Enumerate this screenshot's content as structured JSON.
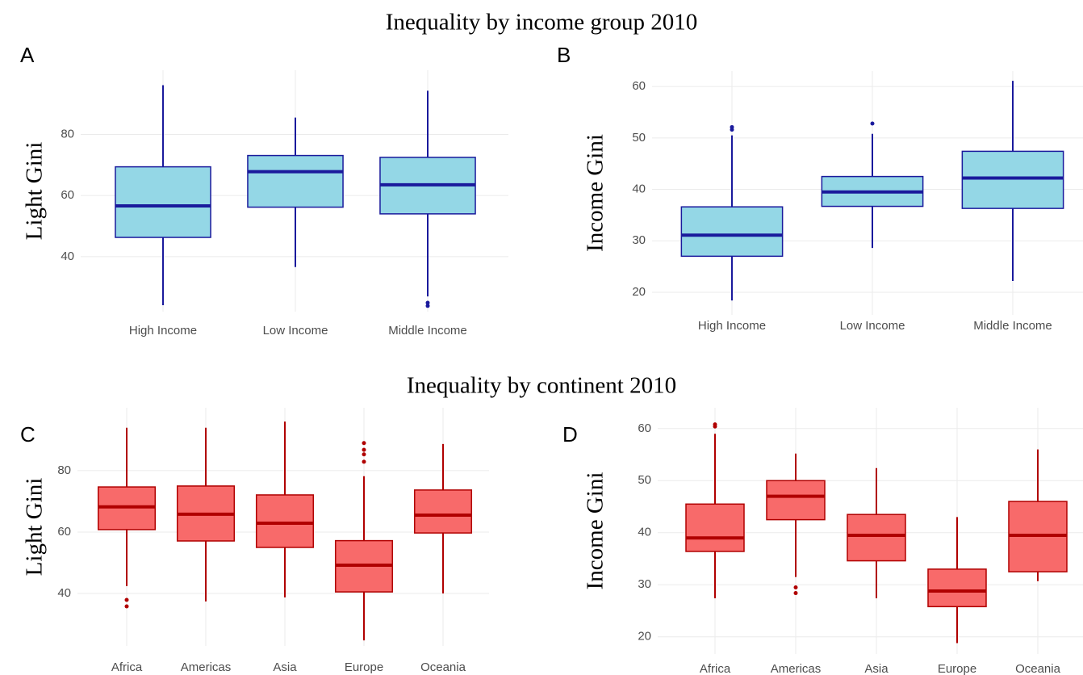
{
  "chart_data": [
    {
      "type": "box",
      "title": "Inequality by income group 2010",
      "panel": "A",
      "ylabel": "Light Gini",
      "categories": [
        "High Income",
        "Low Income",
        "Middle Income"
      ],
      "boxes": [
        {
          "min": 24.1,
          "q1": 46.3,
          "median": 56.6,
          "q3": 69.4,
          "max": 96.1,
          "outliers": []
        },
        {
          "min": 36.6,
          "q1": 56.2,
          "median": 67.8,
          "q3": 73.1,
          "max": 85.5,
          "outliers": []
        },
        {
          "min": 27.0,
          "q1": 54.0,
          "median": 63.5,
          "q3": 72.5,
          "max": 94.3,
          "outliers": [
            24.9,
            23.9
          ]
        }
      ],
      "color": "#94d7e6",
      "edge_color": "#1a1a9c",
      "ylim": [
        22,
        101
      ],
      "yticks": [
        40,
        60,
        80
      ],
      "grid": true
    },
    {
      "type": "box",
      "panel": "B",
      "ylabel": "Income Gini",
      "categories": [
        "High Income",
        "Low Income",
        "Middle Income"
      ],
      "boxes": [
        {
          "min": 18.4,
          "q1": 27.0,
          "median": 31.1,
          "q3": 36.6,
          "max": 50.5,
          "outliers": [
            52.1,
            51.6
          ]
        },
        {
          "min": 28.6,
          "q1": 36.7,
          "median": 39.5,
          "q3": 42.5,
          "max": 50.8,
          "outliers": [
            52.8
          ]
        },
        {
          "min": 22.2,
          "q1": 36.3,
          "median": 42.2,
          "q3": 47.4,
          "max": 61.1,
          "outliers": []
        }
      ],
      "color": "#94d7e6",
      "edge_color": "#1a1a9c",
      "ylim": [
        15.6,
        63
      ],
      "yticks": [
        20,
        30,
        40,
        50,
        60
      ],
      "grid": true
    },
    {
      "type": "box",
      "title": "Inequality by continent 2010",
      "panel": "C",
      "ylabel": "Light Gini",
      "categories": [
        "Africa",
        "Americas",
        "Asia",
        "Europe",
        "Oceania"
      ],
      "boxes": [
        {
          "min": 42.4,
          "q1": 60.8,
          "median": 68.2,
          "q3": 74.7,
          "max": 94.0,
          "outliers": [
            37.9,
            35.8
          ]
        },
        {
          "min": 37.4,
          "q1": 57.1,
          "median": 65.8,
          "q3": 75.0,
          "max": 94.0,
          "outliers": []
        },
        {
          "min": 38.7,
          "q1": 55.0,
          "median": 62.9,
          "q3": 72.1,
          "max": 96.0,
          "outliers": []
        },
        {
          "min": 24.7,
          "q1": 40.5,
          "median": 49.2,
          "q3": 57.2,
          "max": 78.2,
          "outliers": [
            89.0,
            86.8,
            85.3,
            82.9
          ]
        },
        {
          "min": 40.0,
          "q1": 59.7,
          "median": 65.5,
          "q3": 73.7,
          "max": 88.7,
          "outliers": []
        }
      ],
      "color": "#f86a6a",
      "edge_color": "#b00000",
      "ylim": [
        22.9,
        100.5
      ],
      "yticks": [
        40,
        60,
        80
      ],
      "grid": true
    },
    {
      "type": "box",
      "panel": "D",
      "ylabel": "Income Gini",
      "categories": [
        "Africa",
        "Americas",
        "Asia",
        "Europe",
        "Oceania"
      ],
      "boxes": [
        {
          "min": 27.4,
          "q1": 36.4,
          "median": 39.0,
          "q3": 45.5,
          "max": 59.0,
          "outliers": [
            60.8,
            60.4
          ]
        },
        {
          "min": 31.5,
          "q1": 42.5,
          "median": 47.0,
          "q3": 50.0,
          "max": 55.2,
          "outliers": [
            29.5,
            28.4
          ]
        },
        {
          "min": 27.4,
          "q1": 34.6,
          "median": 39.5,
          "q3": 43.5,
          "max": 52.4,
          "outliers": []
        },
        {
          "min": 18.8,
          "q1": 25.8,
          "median": 28.8,
          "q3": 33.0,
          "max": 43.0,
          "outliers": []
        },
        {
          "min": 30.7,
          "q1": 32.5,
          "median": 39.5,
          "q3": 46.0,
          "max": 56.0,
          "outliers": []
        }
      ],
      "color": "#f86a6a",
      "edge_color": "#b00000",
      "ylim": [
        16.7,
        64
      ],
      "yticks": [
        20,
        30,
        40,
        50,
        60
      ],
      "grid": true
    }
  ]
}
